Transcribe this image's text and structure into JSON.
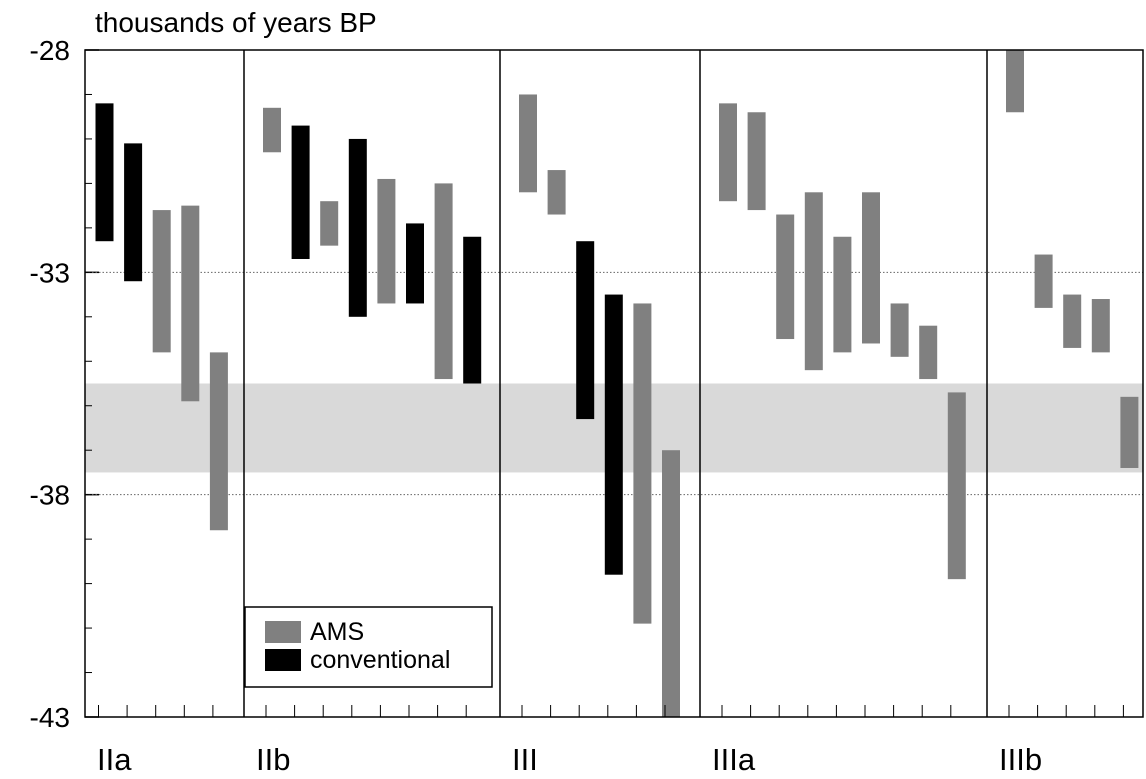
{
  "chart_data": {
    "type": "range_bar",
    "ylabel": "thousands of years BP",
    "ylim": [
      -43,
      -28
    ],
    "yticks": [
      -28,
      -33,
      -38,
      -43
    ],
    "grid": true,
    "band": [
      -35.5,
      -37.5
    ],
    "band_color": "#d9d9d9",
    "series": [
      {
        "name": "AMS",
        "color": "#808080"
      },
      {
        "name": "conventional",
        "color": "#000000"
      }
    ],
    "groups": [
      {
        "name": "IIa",
        "bars": [
          {
            "series": 1,
            "high": -29.2,
            "low": -32.3
          },
          {
            "series": 1,
            "high": -30.1,
            "low": -33.2
          },
          {
            "series": 0,
            "high": -31.6,
            "low": -34.8
          },
          {
            "series": 0,
            "high": -31.5,
            "low": -35.9
          },
          {
            "series": 0,
            "high": -34.8,
            "low": -38.8
          }
        ]
      },
      {
        "name": "IIb",
        "bars": [
          {
            "series": 0,
            "high": -29.3,
            "low": -30.3
          },
          {
            "series": 1,
            "high": -29.7,
            "low": -32.7
          },
          {
            "series": 0,
            "high": -31.4,
            "low": -32.4
          },
          {
            "series": 1,
            "high": -30.0,
            "low": -34.0
          },
          {
            "series": 0,
            "high": -30.9,
            "low": -33.7
          },
          {
            "series": 1,
            "high": -31.9,
            "low": -33.7
          },
          {
            "series": 0,
            "high": -31.0,
            "low": -35.4
          },
          {
            "series": 1,
            "high": -32.2,
            "low": -35.5
          }
        ]
      },
      {
        "name": "III",
        "bars": [
          {
            "series": 0,
            "high": -29.0,
            "low": -31.2
          },
          {
            "series": 0,
            "high": -30.7,
            "low": -31.7
          },
          {
            "series": 1,
            "high": -32.3,
            "low": -36.3
          },
          {
            "series": 1,
            "high": -33.5,
            "low": -39.8
          },
          {
            "series": 0,
            "high": -33.7,
            "low": -40.9
          },
          {
            "series": 0,
            "high": -37.0,
            "low": -43.0
          }
        ]
      },
      {
        "name": "IIIa",
        "bars": [
          {
            "series": 0,
            "high": -29.2,
            "low": -31.4
          },
          {
            "series": 0,
            "high": -29.4,
            "low": -31.6
          },
          {
            "series": 0,
            "high": -31.7,
            "low": -34.5
          },
          {
            "series": 0,
            "high": -31.2,
            "low": -35.2
          },
          {
            "series": 0,
            "high": -32.2,
            "low": -34.8
          },
          {
            "series": 0,
            "high": -31.2,
            "low": -34.6
          },
          {
            "series": 0,
            "high": -33.7,
            "low": -34.9
          },
          {
            "series": 0,
            "high": -34.2,
            "low": -35.4
          },
          {
            "series": 0,
            "high": -35.7,
            "low": -39.9
          }
        ]
      },
      {
        "name": "IIIb",
        "bars": [
          {
            "series": 0,
            "high": -28.0,
            "low": -29.4
          },
          {
            "series": 0,
            "high": -32.6,
            "low": -33.8
          },
          {
            "series": 0,
            "high": -33.5,
            "low": -34.7
          },
          {
            "series": 0,
            "high": -33.6,
            "low": -34.8
          },
          {
            "series": 0,
            "high": -35.8,
            "low": -37.4
          }
        ]
      }
    ]
  }
}
